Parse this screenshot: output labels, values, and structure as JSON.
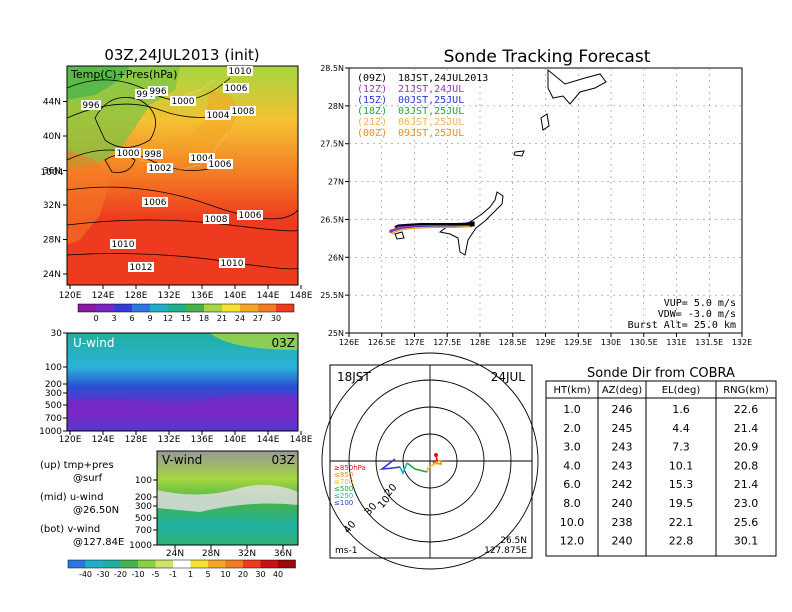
{
  "colors": {
    "hot": "#ee3a1e",
    "warm": "#f47a24",
    "mid": "#f4c132",
    "lime": "#a6d640",
    "green": "#43b34a",
    "teal": "#1fb0a0",
    "blue": "#2b4fd6",
    "purple": "#7b27c4",
    "land": "#ffffff",
    "track12": "#9b30c8",
    "track15": "#2c38d8",
    "track18": "#1aa83a",
    "track21": "#f0b54c",
    "track00": "#f08a18"
  },
  "map_panel": {
    "title": "03Z,24JUL2013 (init)",
    "label": "Temp(C)+Pres(hPa)",
    "lon_ticks": [
      "120E",
      "124E",
      "128E",
      "132E",
      "136E",
      "140E",
      "144E",
      "148E"
    ],
    "lat_ticks": [
      "24N",
      "28N",
      "32N",
      "36N",
      "40N",
      "44N"
    ],
    "isobars": [
      "1010",
      "1006",
      "996",
      "994",
      "996",
      "1000",
      "1004",
      "1008",
      "1000",
      "998",
      "1002",
      "1004",
      "1004",
      "1006",
      "1006",
      "1008",
      "1006",
      "1010",
      "1012",
      "1010"
    ],
    "colorbar_labels": [
      "0",
      "3",
      "6",
      "9",
      "12",
      "15",
      "18",
      "21",
      "24",
      "27",
      "30"
    ]
  },
  "u_panel": {
    "label": "U-wind",
    "time": "03Z",
    "p_ticks": [
      "30",
      "100",
      "200",
      "300",
      "500",
      "700",
      "1000"
    ],
    "lon_ticks": [
      "120E",
      "124E",
      "128E",
      "132E",
      "136E",
      "140E",
      "144E",
      "148E"
    ]
  },
  "v_panel": {
    "label": "V-wind",
    "time": "03Z",
    "p_ticks": [
      "100",
      "200",
      "300",
      "500",
      "700",
      "1000"
    ],
    "lat_ticks": [
      "24N",
      "28N",
      "32N",
      "36N"
    ],
    "colorbar_labels": [
      "-40",
      "-30",
      "-20",
      "-10",
      "-5",
      "-1",
      "1",
      "5",
      "10",
      "20",
      "30",
      "40"
    ]
  },
  "legend_notes": [
    {
      "a": "(up)  tmp+pres",
      "b": "@surf"
    },
    {
      "a": "(mid) u-wind",
      "b": "@26.50N"
    },
    {
      "a": "(bot) v-wind",
      "b": "@127.84E"
    }
  ],
  "tracking": {
    "title": "Sonde Tracking Forecast",
    "x_ticks": [
      "126E",
      "126.5E",
      "127E",
      "127.5E",
      "128E",
      "128.5E",
      "129E",
      "129.5E",
      "130E",
      "130.5E",
      "131E",
      "131.5E",
      "132E"
    ],
    "y_ticks": [
      "25N",
      "25.5N",
      "26N",
      "26.5N",
      "27N",
      "27.5N",
      "28N",
      "28.5N"
    ],
    "legend": [
      {
        "z": "(09Z)",
        "jst": "18JST,24JUL2013",
        "color": "#000000"
      },
      {
        "z": "(12Z)",
        "jst": "21JST,24JUL",
        "color": "#9b30c8"
      },
      {
        "z": "(15Z)",
        "jst": "00JST,25JUL",
        "color": "#2c38d8"
      },
      {
        "z": "(18Z)",
        "jst": "03JST,25JUL",
        "color": "#1aa83a"
      },
      {
        "z": "(21Z)",
        "jst": "06JST,25JUL",
        "color": "#f0b54c"
      },
      {
        "z": "(00Z)",
        "jst": "09JST,25JUL",
        "color": "#f08a18"
      }
    ],
    "params": [
      "VUP= 5.0 m/s",
      "VDW= -3.0 m/s",
      "Burst Alt= 25.0 km"
    ]
  },
  "polar": {
    "time": "18JST",
    "date": "24JUL",
    "ring_labels": [
      "10",
      "20",
      "30",
      "40"
    ],
    "levels": [
      {
        "t": "≥850hPa",
        "c": "#d81818"
      },
      {
        "t": "≤850",
        "c": "#f08a18"
      },
      {
        "t": "≤700",
        "c": "#e8c01a"
      },
      {
        "t": "≤500",
        "c": "#1aa83a"
      },
      {
        "t": "≤250",
        "c": "#18b0d0"
      },
      {
        "t": "≤100",
        "c": "#2c38d8"
      }
    ],
    "unit": "ms-1",
    "lat": "26.5N",
    "lon": "127.875E"
  },
  "sonde_table": {
    "title": "Sonde Dir from COBRA",
    "headers": [
      "HT(km)",
      "AZ(deg)",
      "EL(deg)",
      "RNG(km)"
    ],
    "rows": [
      [
        "1.0",
        "246",
        "1.6",
        "22.6"
      ],
      [
        "2.0",
        "245",
        "4.4",
        "21.4"
      ],
      [
        "3.0",
        "243",
        "7.3",
        "20.9"
      ],
      [
        "4.0",
        "243",
        "10.1",
        "20.8"
      ],
      [
        "6.0",
        "242",
        "15.3",
        "21.4"
      ],
      [
        "8.0",
        "240",
        "19.5",
        "23.0"
      ],
      [
        "10.0",
        "238",
        "22.1",
        "25.6"
      ],
      [
        "12.0",
        "240",
        "22.8",
        "30.1"
      ]
    ]
  },
  "chart_data": [
    {
      "type": "heatmap",
      "title": "03Z,24JUL2013 (init)",
      "variable": "Temp(C)+Pres(hPa)",
      "x_range": [
        "120E",
        "148E"
      ],
      "y_range": [
        "22N",
        "47N"
      ],
      "colorbar": [
        0,
        3,
        6,
        9,
        12,
        15,
        18,
        21,
        24,
        27,
        30
      ],
      "isobar_labels_hPa": [
        1010,
        1006,
        996,
        994,
        996,
        1000,
        1004,
        1008,
        1000,
        998,
        1002,
        1004,
        1004,
        1006,
        1006,
        1008,
        1006,
        1010,
        1012,
        1010
      ]
    },
    {
      "type": "heatmap",
      "variable": "U-wind",
      "time": "03Z",
      "x_range": [
        "120E",
        "148E"
      ],
      "pressure_levels_hPa": [
        30,
        100,
        200,
        300,
        500,
        700,
        1000
      ]
    },
    {
      "type": "heatmap",
      "variable": "V-wind",
      "time": "03Z",
      "x_range": [
        "22N",
        "38N"
      ],
      "pressure_levels_hPa": [
        100,
        200,
        300,
        500,
        700,
        1000
      ],
      "colorbar": [
        -40,
        -30,
        -20,
        -10,
        -5,
        -1,
        1,
        5,
        10,
        20,
        30,
        40
      ]
    },
    {
      "type": "line",
      "title": "Sonde Tracking Forecast",
      "xlim": [
        126,
        132
      ],
      "ylim": [
        25,
        28.5
      ],
      "series": [
        {
          "name": "(09Z)",
          "x": [
            127.88,
            127.75,
            127.5,
            127.3,
            127.1,
            126.9,
            126.75,
            126.7
          ],
          "y": [
            26.44,
            26.44,
            26.44,
            26.44,
            26.44,
            26.43,
            26.42,
            26.4
          ]
        },
        {
          "name": "(12Z)",
          "x": [
            127.88,
            127.6,
            127.3,
            127.0,
            126.8,
            126.7,
            126.62
          ],
          "y": [
            26.45,
            26.44,
            26.43,
            26.42,
            26.4,
            26.37,
            26.35
          ]
        },
        {
          "name": "(15Z)",
          "x": [
            127.88,
            127.6,
            127.3,
            127.0,
            126.8,
            126.68,
            126.62
          ],
          "y": [
            26.43,
            26.42,
            26.42,
            26.41,
            26.39,
            26.36,
            26.33
          ]
        },
        {
          "name": "(18Z)",
          "x": [
            127.88,
            127.6,
            127.3,
            127.0,
            126.8,
            126.7
          ],
          "y": [
            26.44,
            26.43,
            26.43,
            26.42,
            26.4,
            26.38
          ]
        },
        {
          "name": "(21Z)",
          "x": [
            127.88,
            127.6,
            127.3,
            127.0,
            126.8,
            126.7,
            126.65
          ],
          "y": [
            26.42,
            26.41,
            26.41,
            26.4,
            26.38,
            26.35,
            26.32
          ]
        },
        {
          "name": "(00Z)",
          "x": [
            127.88,
            127.6,
            127.3,
            127.0,
            126.8,
            126.7,
            126.65
          ],
          "y": [
            26.41,
            26.4,
            26.4,
            26.39,
            26.37,
            26.34,
            26.31
          ]
        }
      ],
      "params": {
        "VUP_m_s": 5.0,
        "VDW_m_s": -3.0,
        "burst_alt_km": 25.0
      }
    },
    {
      "type": "table",
      "title": "Sonde Dir from COBRA",
      "columns": [
        "HT(km)",
        "AZ(deg)",
        "EL(deg)",
        "RNG(km)"
      ],
      "rows": [
        [
          1.0,
          246,
          1.6,
          22.6
        ],
        [
          2.0,
          245,
          4.4,
          21.4
        ],
        [
          3.0,
          243,
          7.3,
          20.9
        ],
        [
          4.0,
          243,
          10.1,
          20.8
        ],
        [
          6.0,
          242,
          15.3,
          21.4
        ],
        [
          8.0,
          240,
          19.5,
          23.0
        ],
        [
          10.0,
          238,
          22.1,
          25.6
        ],
        [
          12.0,
          240,
          22.8,
          30.1
        ]
      ]
    }
  ]
}
